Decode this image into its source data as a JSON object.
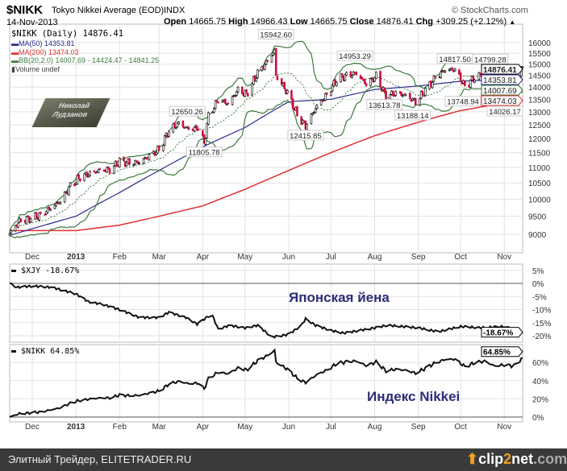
{
  "header": {
    "symbol": "$NIKK",
    "name": "Tokyo Nikkei Average (EOD)",
    "exchange": "INDX",
    "date": "14-Nov-2013",
    "source": "© StockCharts.com",
    "open_label": "Open",
    "open": "14665.75",
    "high_label": "High",
    "high": "14966.43",
    "low_label": "Low",
    "low": "14665.75",
    "close_label": "Close",
    "close": "14876.41",
    "chg_label": "Chg",
    "chg": "+309.25 (+2.12%)",
    "chg_arrow": "▲"
  },
  "legend": {
    "price": "$NIKK (Daily) 14876.41",
    "ma50": "MA(50) 14353.81",
    "ma200": "MA(200) 13474.03",
    "bb": "BB(20,2.0) 14007.69 - 14424.47 - 14841.25",
    "volume": "Volume undef"
  },
  "watermark": {
    "line1": "Николай",
    "line2": "Лудзанов"
  },
  "colors": {
    "ma50": "#2b2b8f",
    "ma200": "#e03030",
    "bb": "#3d7a3d",
    "down": "#c8103f",
    "up": "#000000",
    "overlay_text": "#2d2d7a"
  },
  "chart_data": [
    {
      "type": "candlestick",
      "title": "$NIKK Tokyo Nikkei Average (EOD)",
      "y_scale": "log",
      "ylim": [
        8700,
        16200
      ],
      "y_ticks": [
        "16000",
        "15500",
        "15000",
        "14500",
        "14000",
        "13500",
        "13000",
        "12500",
        "12000",
        "11500",
        "11000",
        "10500",
        "10000",
        "9500",
        "9000"
      ],
      "x_ticks": [
        {
          "label": "Dec",
          "date": "2012-12-01"
        },
        {
          "label": "2013",
          "date": "2013-01-01"
        },
        {
          "label": "Feb",
          "date": "2013-02-01"
        },
        {
          "label": "Mar",
          "date": "2013-03-01"
        },
        {
          "label": "Apr",
          "date": "2013-04-01"
        },
        {
          "label": "May",
          "date": "2013-05-01"
        },
        {
          "label": "Jun",
          "date": "2013-06-01"
        },
        {
          "label": "Jul",
          "date": "2013-07-01"
        },
        {
          "label": "Aug",
          "date": "2013-08-01"
        },
        {
          "label": "Sep",
          "date": "2013-09-01"
        },
        {
          "label": "Oct",
          "date": "2013-10-01"
        },
        {
          "label": "Nov",
          "date": "2013-11-01"
        }
      ],
      "start_date": "2012-11-15",
      "end_date": "2013-11-14",
      "close": [
        [
          "2012-11-15",
          9024
        ],
        [
          "2012-11-22",
          9366
        ],
        [
          "2012-11-30",
          9446
        ],
        [
          "2012-12-07",
          9527
        ],
        [
          "2012-12-14",
          9737
        ],
        [
          "2012-12-21",
          9940
        ],
        [
          "2012-12-28",
          10395
        ],
        [
          "2013-01-04",
          10688
        ],
        [
          "2013-01-11",
          10801
        ],
        [
          "2013-01-18",
          10913
        ],
        [
          "2013-01-25",
          10926
        ],
        [
          "2013-02-01",
          11191
        ],
        [
          "2013-02-08",
          11153
        ],
        [
          "2013-02-15",
          11173
        ],
        [
          "2013-02-22",
          11385
        ],
        [
          "2013-03-01",
          11606
        ],
        [
          "2013-03-08",
          12283
        ],
        [
          "2013-03-15",
          12560
        ],
        [
          "2013-03-22",
          12338
        ],
        [
          "2013-03-29",
          12397
        ],
        [
          "2013-04-02",
          11806
        ],
        [
          "2013-04-05",
          12833
        ],
        [
          "2013-04-12",
          13485
        ],
        [
          "2013-04-19",
          13316
        ],
        [
          "2013-04-26",
          13884
        ],
        [
          "2013-05-02",
          13694
        ],
        [
          "2013-05-10",
          14607
        ],
        [
          "2013-05-17",
          15138
        ],
        [
          "2013-05-22",
          15627
        ],
        [
          "2013-05-23",
          14483
        ],
        [
          "2013-05-31",
          13774
        ],
        [
          "2013-06-07",
          12877
        ],
        [
          "2013-06-13",
          12445
        ],
        [
          "2013-06-21",
          13230
        ],
        [
          "2013-06-28",
          13677
        ],
        [
          "2013-07-05",
          14309
        ],
        [
          "2013-07-12",
          14506
        ],
        [
          "2013-07-19",
          14589
        ],
        [
          "2013-07-26",
          14129
        ],
        [
          "2013-08-02",
          14466
        ],
        [
          "2013-08-09",
          13615
        ],
        [
          "2013-08-16",
          13752
        ],
        [
          "2013-08-23",
          13660
        ],
        [
          "2013-08-30",
          13388
        ],
        [
          "2013-09-06",
          13860
        ],
        [
          "2013-09-13",
          14404
        ],
        [
          "2013-09-20",
          14742
        ],
        [
          "2013-09-27",
          14760
        ],
        [
          "2013-10-04",
          14024
        ],
        [
          "2013-10-11",
          14404
        ],
        [
          "2013-10-18",
          14562
        ],
        [
          "2013-10-25",
          14088
        ],
        [
          "2013-11-01",
          14201
        ],
        [
          "2013-11-08",
          14086
        ],
        [
          "2013-11-14",
          14876.41
        ]
      ],
      "ma50": [
        [
          "2012-11-15",
          8970
        ],
        [
          "2013-01-01",
          9500
        ],
        [
          "2013-02-01",
          10200
        ],
        [
          "2013-03-01",
          10900
        ],
        [
          "2013-04-01",
          11700
        ],
        [
          "2013-05-01",
          12400
        ],
        [
          "2013-06-01",
          13400
        ],
        [
          "2013-07-01",
          13500
        ],
        [
          "2013-08-01",
          13900
        ],
        [
          "2013-09-01",
          14050
        ],
        [
          "2013-10-01",
          14250
        ],
        [
          "2013-11-14",
          14353.81
        ]
      ],
      "ma200": [
        [
          "2012-11-15",
          9100
        ],
        [
          "2013-01-01",
          9100
        ],
        [
          "2013-02-01",
          9250
        ],
        [
          "2013-03-01",
          9500
        ],
        [
          "2013-04-01",
          9800
        ],
        [
          "2013-05-01",
          10300
        ],
        [
          "2013-06-01",
          10900
        ],
        [
          "2013-07-01",
          11500
        ],
        [
          "2013-08-01",
          12100
        ],
        [
          "2013-09-01",
          12600
        ],
        [
          "2013-10-01",
          13050
        ],
        [
          "2013-11-14",
          13474.03
        ]
      ],
      "annotations": [
        {
          "text": "15942.60",
          "date": "2013-05-23",
          "value": 15942.6,
          "pos": "above"
        },
        {
          "text": "12650.26",
          "date": "2013-03-21",
          "value": 12650.26,
          "pos": "above"
        },
        {
          "text": "11805.78",
          "date": "2013-04-02",
          "value": 11805.78,
          "pos": "below"
        },
        {
          "text": "12415.85",
          "date": "2013-06-13",
          "value": 12415.85,
          "pos": "below"
        },
        {
          "text": "14953.29",
          "date": "2013-07-18",
          "value": 14953.29,
          "pos": "above"
        },
        {
          "text": "13613.78",
          "date": "2013-08-08",
          "value": 13613.78,
          "pos": "below"
        },
        {
          "text": "13188.14",
          "date": "2013-08-28",
          "value": 13188.14,
          "pos": "below"
        },
        {
          "text": "14817.50",
          "date": "2013-09-27",
          "value": 14817.5,
          "pos": "above"
        },
        {
          "text": "14799.28",
          "date": "2013-10-22",
          "value": 14799.28,
          "pos": "above"
        },
        {
          "text": "13748.94",
          "date": "2013-10-04",
          "value": 13748.94,
          "pos": "below"
        },
        {
          "text": "14026.17",
          "date": "2013-11-07",
          "value": 14026.17,
          "pos": "below"
        }
      ],
      "last_values": [
        {
          "text": "14876.41",
          "series": "close",
          "value": 14876.41
        },
        {
          "text": "14353.81",
          "series": "ma50",
          "value": 14353.81
        },
        {
          "text": "14007.69",
          "series": "bb_lower",
          "value": 14007.69
        },
        {
          "text": "13474.03",
          "series": "ma200",
          "value": 13474.03
        }
      ]
    },
    {
      "type": "line",
      "name": "$XJY -18.67%",
      "overlay_text": "Японская йена",
      "y_ticks": [
        "5%",
        "0%",
        "-5%",
        "-10%",
        "-15%",
        "-20%"
      ],
      "ylim": [
        -21,
        6
      ],
      "last_label": "-18.67%",
      "points": [
        [
          "2012-11-15",
          0
        ],
        [
          "2012-11-20",
          -1.5
        ],
        [
          "2012-12-01",
          -1
        ],
        [
          "2012-12-15",
          -1.5
        ],
        [
          "2013-01-01",
          -4
        ],
        [
          "2013-01-10",
          -7
        ],
        [
          "2013-01-20",
          -8
        ],
        [
          "2013-02-01",
          -10
        ],
        [
          "2013-02-15",
          -13
        ],
        [
          "2013-03-01",
          -13
        ],
        [
          "2013-03-08",
          -11
        ],
        [
          "2013-03-20",
          -13
        ],
        [
          "2013-03-28",
          -15.5
        ],
        [
          "2013-04-05",
          -12.5
        ],
        [
          "2013-04-08",
          -12.5
        ],
        [
          "2013-04-12",
          -17.5
        ],
        [
          "2013-04-20",
          -16
        ],
        [
          "2013-05-01",
          -17
        ],
        [
          "2013-05-10",
          -16
        ],
        [
          "2013-05-20",
          -20.5
        ],
        [
          "2013-06-01",
          -19.5
        ],
        [
          "2013-06-10",
          -16
        ],
        [
          "2013-06-13",
          -13.5
        ],
        [
          "2013-06-20",
          -16
        ],
        [
          "2013-07-01",
          -18
        ],
        [
          "2013-07-10",
          -19
        ],
        [
          "2013-08-01",
          -17
        ],
        [
          "2013-08-10",
          -16
        ],
        [
          "2013-09-01",
          -17
        ],
        [
          "2013-09-15",
          -18.5
        ],
        [
          "2013-10-01",
          -16.5
        ],
        [
          "2013-10-15",
          -17
        ],
        [
          "2013-11-01",
          -16.5
        ],
        [
          "2013-11-14",
          -18.67
        ]
      ]
    },
    {
      "type": "line",
      "name": "$NIKK 64.85%",
      "overlay_text": "Индекс Nikkei",
      "y_ticks": [
        "60%",
        "40%",
        "20%",
        "0%"
      ],
      "ylim": [
        -2,
        72
      ],
      "last_label": "64.85%",
      "base": 9024
    }
  ],
  "footer": {
    "text": "Элитный Трейдер, ELITETRADER.RU",
    "logo_clip": "clip",
    "logo_2": "2",
    "logo_net": "net",
    "logo_com": ".com"
  }
}
